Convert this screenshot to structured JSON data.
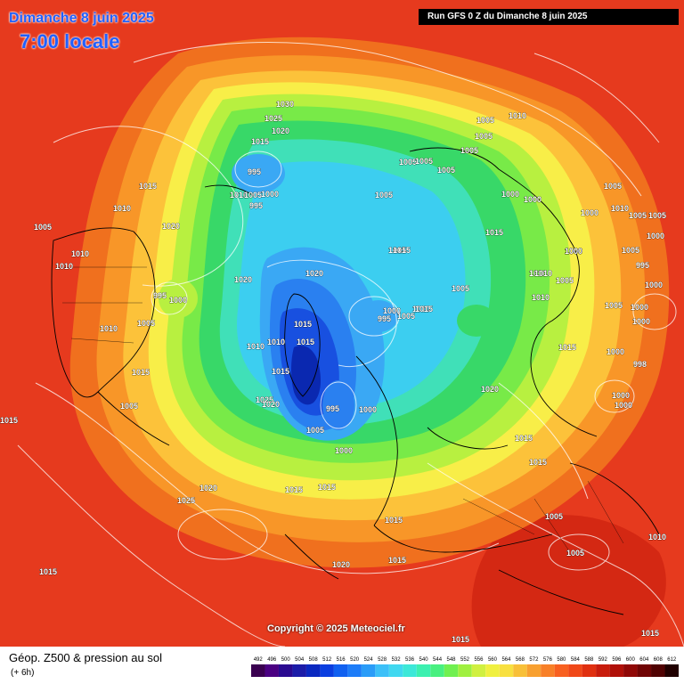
{
  "header": {
    "date_title": "Dimanche 8 juin 2025",
    "time_title": "7:00 locale",
    "run_info": "Run GFS 0 Z du Dimanche 8 juin 2025"
  },
  "footer": {
    "product_title": "Géop. Z500 & pression au sol",
    "step": "(+ 6h)",
    "copyright": "Copyright © 2025 Meteociel.fr"
  },
  "legend": {
    "values": [
      "492",
      "496",
      "500",
      "504",
      "508",
      "512",
      "516",
      "520",
      "524",
      "528",
      "532",
      "536",
      "540",
      "544",
      "548",
      "552",
      "556",
      "560",
      "564",
      "568",
      "572",
      "576",
      "580",
      "584",
      "588",
      "592",
      "596",
      "600",
      "604",
      "608",
      "612"
    ],
    "colors": [
      "#3a0050",
      "#4b0082",
      "#2a0a90",
      "#1c1ca8",
      "#0a28c0",
      "#0a3ee0",
      "#1060f0",
      "#1c7cf8",
      "#2a9cf8",
      "#3cc0f8",
      "#40d8f0",
      "#3ce8d8",
      "#3cf0b0",
      "#48f080",
      "#70f050",
      "#a0f040",
      "#d0f040",
      "#f0f040",
      "#f8e040",
      "#f8c038",
      "#f8a030",
      "#f88028",
      "#f86020",
      "#f04818",
      "#e03010",
      "#c81c0c",
      "#b01008",
      "#900806",
      "#700404",
      "#500202",
      "#200000"
    ]
  },
  "colors": {
    "band_612": "#a00808",
    "band_588": "#e63a1e",
    "band_580": "#f0701e",
    "band_576": "#f89628",
    "band_568": "#fcc23a",
    "band_560": "#f8ee48",
    "band_556": "#b8f040",
    "band_552": "#78ea48",
    "band_548": "#38d868",
    "band_544": "#40e0b8",
    "band_540": "#3ccef0",
    "band_536": "#3aa8f4",
    "band_528": "#2a80f0",
    "band_520": "#1850e0",
    "band_512": "#0a28b0"
  },
  "pressure_labels": [
    "1030",
    "1025",
    "1020",
    "1015",
    "995",
    "1010",
    "1005",
    "1000",
    "995",
    "1015",
    "1010",
    "1020",
    "1005",
    "1010",
    "995",
    "1000",
    "1005",
    "1010",
    "1010",
    "1015",
    "1005",
    "1015",
    "1020",
    "1015",
    "1020",
    "1015",
    "1010",
    "1010",
    "1015",
    "1015",
    "1010",
    "1025",
    "1020",
    "995",
    "1000",
    "1005",
    "1000",
    "1015",
    "1020",
    "1025",
    "1015",
    "1015",
    "1020",
    "1015",
    "1005",
    "1010",
    "1005",
    "1005",
    "1005",
    "1005",
    "1005",
    "1000",
    "1000",
    "1015",
    "1000",
    "1000",
    "1005",
    "1010",
    "1005",
    "1010",
    "1005",
    "1005",
    "1000",
    "1005",
    "995",
    "1000",
    "1005",
    "1000",
    "1005",
    "1000",
    "1000",
    "998",
    "1000",
    "1000",
    "1000",
    "1020",
    "1015",
    "1015",
    "1005",
    "1005",
    "1010",
    "1015",
    "1015",
    "1005",
    "1015",
    "1010",
    "1005",
    "995",
    "1000",
    "1010",
    "1015",
    "1015",
    "1015"
  ]
}
